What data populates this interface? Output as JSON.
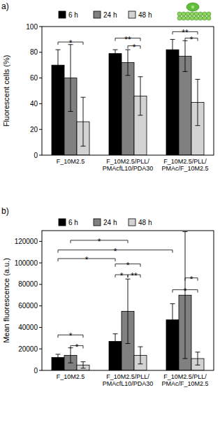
{
  "chart_data": [
    {
      "type": "bar",
      "title": "a)",
      "y_label": "Fluorescent cells (%)",
      "categories": [
        "F_10M2.5",
        "F_10M2.5/PLL/PMAcfL10/PDA30",
        "F_10M2.5/PLL/PMAc/F_10M2.5"
      ],
      "series": [
        {
          "name": "6 h",
          "color": "#000000",
          "values": [
            70,
            79,
            82
          ],
          "errors": [
            12,
            3,
            8
          ]
        },
        {
          "name": "24 h",
          "color": "#808080",
          "values": [
            60,
            72,
            77
          ],
          "errors": [
            26,
            10,
            12
          ]
        },
        {
          "name": "48 h",
          "color": "#d3d3d3",
          "values": [
            26,
            46,
            41
          ],
          "errors": [
            19,
            15,
            18
          ]
        }
      ],
      "ylim": [
        0,
        100
      ],
      "yticks": [
        0,
        20,
        40,
        60,
        80,
        100
      ],
      "grid": false,
      "legend": "top",
      "significance": [
        {
          "from": [
            0,
            0
          ],
          "to": [
            0,
            2
          ],
          "y": 88,
          "label": "*"
        },
        {
          "from": [
            1,
            1
          ],
          "to": [
            1,
            2
          ],
          "y": 85,
          "label": "*"
        },
        {
          "from": [
            1,
            0
          ],
          "to": [
            1,
            2
          ],
          "y": 91,
          "label": "**"
        },
        {
          "from": [
            2,
            1
          ],
          "to": [
            2,
            2
          ],
          "y": 91,
          "label": "*"
        },
        {
          "from": [
            2,
            0
          ],
          "to": [
            2,
            2
          ],
          "y": 96,
          "label": "**"
        }
      ]
    },
    {
      "type": "bar",
      "title": "b)",
      "y_label": "Mean fluorescence (a.u.)",
      "categories": [
        "F_10M2.5",
        "F_10M2.5/PLL/PMAcfL10/PDA30",
        "F_10M2.5/PLL/PMAc/F_10M2.5"
      ],
      "series": [
        {
          "name": "6 h",
          "color": "#000000",
          "values": [
            12000,
            27000,
            47000
          ],
          "errors": [
            3000,
            7000,
            15000
          ]
        },
        {
          "name": "24 h",
          "color": "#808080",
          "values": [
            14000,
            55000,
            70000
          ],
          "errors": [
            7000,
            30000,
            59000
          ]
        },
        {
          "name": "48 h",
          "color": "#d3d3d3",
          "values": [
            5000,
            14000,
            11000
          ],
          "errors": [
            3000,
            8000,
            6000
          ]
        }
      ],
      "ylim": [
        0,
        130000
      ],
      "yticks": [
        0,
        20000,
        40000,
        60000,
        80000,
        100000,
        120000
      ],
      "grid": false,
      "legend": "top",
      "significance": [
        {
          "from": [
            0,
            1
          ],
          "to": [
            0,
            2
          ],
          "y": 23000,
          "label": "*"
        },
        {
          "from": [
            0,
            0
          ],
          "to": [
            0,
            2
          ],
          "y": 33000,
          "label": "*"
        },
        {
          "from": [
            1,
            0
          ],
          "to": [
            1,
            1
          ],
          "y": 89000,
          "label": "*"
        },
        {
          "from": [
            1,
            1
          ],
          "to": [
            1,
            2
          ],
          "y": 89000,
          "label": "**"
        },
        {
          "from": [
            1,
            0
          ],
          "to": [
            1,
            2
          ],
          "y": 99000,
          "label": "*"
        },
        {
          "from": [
            2,
            0
          ],
          "to": [
            2,
            2
          ],
          "y": 75000,
          "label": "*"
        },
        {
          "from": [
            2,
            1
          ],
          "to": [
            2,
            2
          ],
          "y": 86000,
          "label": "*"
        },
        {
          "from": [
            0,
            0
          ],
          "to": [
            1,
            0
          ],
          "y": 104000,
          "label": "*"
        },
        {
          "from": [
            0,
            0
          ],
          "to": [
            2,
            0
          ],
          "y": 112000,
          "label": "*"
        },
        {
          "from": [
            0,
            1
          ],
          "to": [
            1,
            1
          ],
          "y": 121000,
          "label": "*"
        }
      ]
    }
  ]
}
